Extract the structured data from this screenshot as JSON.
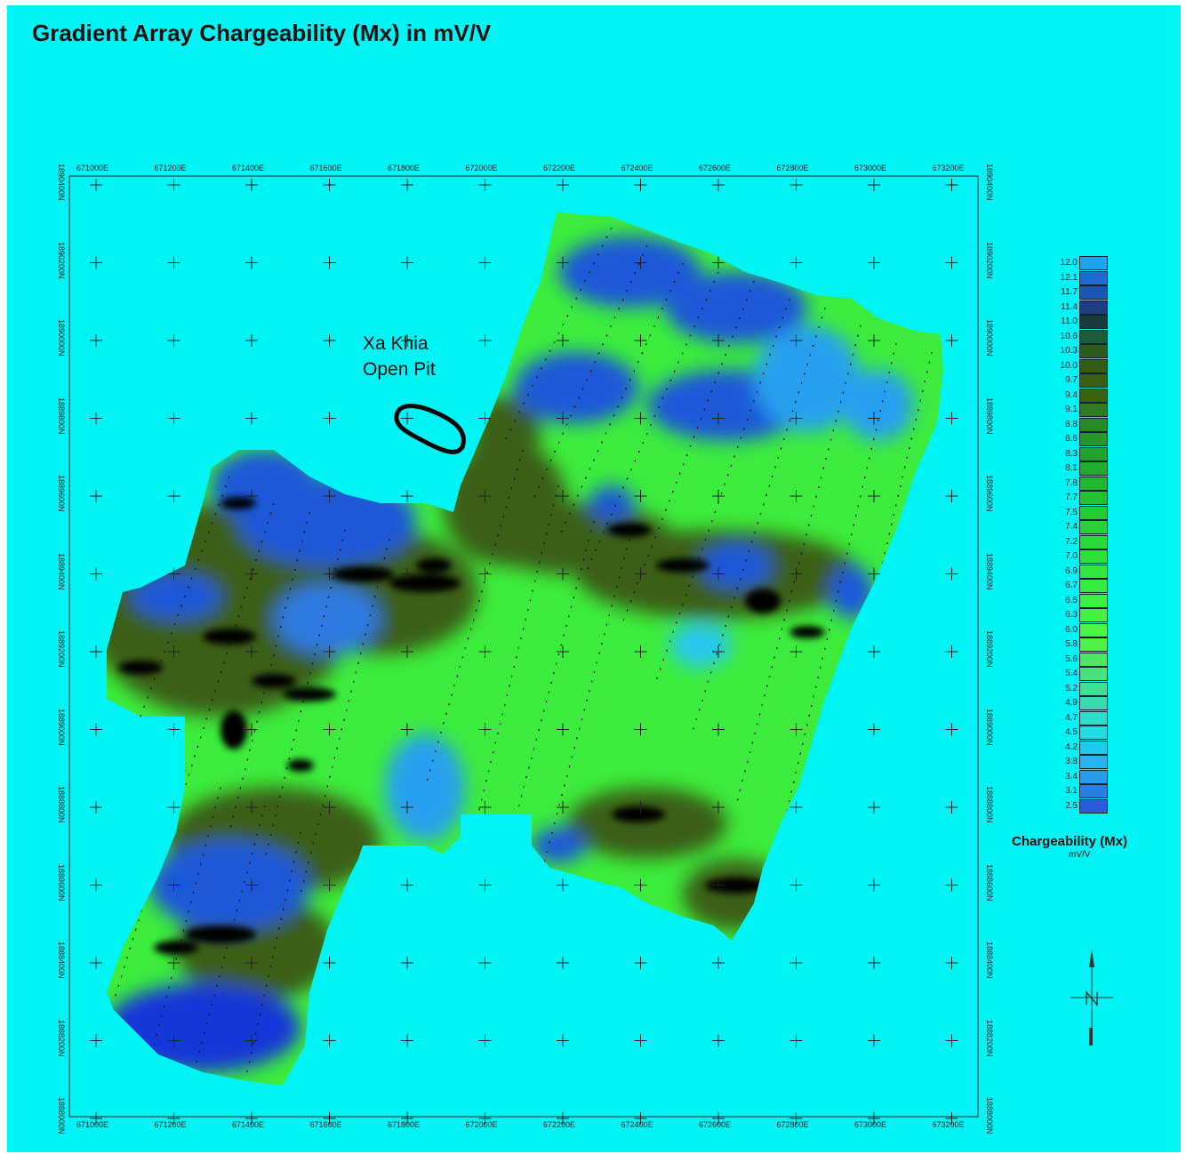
{
  "title": "Gradient Array Chargeability (Mx) in mV/V",
  "colors": {
    "background": "#00f4f6",
    "dark_green": "#3c5f10",
    "bright_green": "#3cf03c",
    "blue": "#1a4fd8",
    "black": "#050505"
  },
  "map": {
    "easting_labels": [
      "671000E",
      "671200E",
      "671400E",
      "671600E",
      "671800E",
      "672000E",
      "672200E",
      "672400E",
      "672600E",
      "672800E",
      "673000E",
      "673200E"
    ],
    "northing_labels": [
      "1890400N",
      "1890200N",
      "1890000N",
      "1889800N",
      "1889600N",
      "1889400N",
      "1889200N",
      "1889000N",
      "1888800N",
      "1888600N",
      "1888400N",
      "1888200N",
      "1888000N"
    ],
    "annotation": {
      "line1": "Xa Khia",
      "line2": "Open Pit"
    }
  },
  "legend": {
    "title": "Chargeability (Mx)",
    "unit": "mV/V",
    "items": [
      {
        "value": "12.0",
        "color": "#1ea3ee"
      },
      {
        "value": "12.1",
        "color": "#1f6bd6"
      },
      {
        "value": "11.7",
        "color": "#1a55b8"
      },
      {
        "value": "11.4",
        "color": "#1d3f7e"
      },
      {
        "value": "11.0",
        "color": "#1c3c3c"
      },
      {
        "value": "10.6",
        "color": "#1b5a3a"
      },
      {
        "value": "10.3",
        "color": "#2d5b1c"
      },
      {
        "value": "10.0",
        "color": "#345d13"
      },
      {
        "value": "9.7",
        "color": "#3a5e12"
      },
      {
        "value": "9.4",
        "color": "#3a6212"
      },
      {
        "value": "9.1",
        "color": "#2f7b22"
      },
      {
        "value": "8.8",
        "color": "#2a8a28"
      },
      {
        "value": "8.6",
        "color": "#27962a"
      },
      {
        "value": "8.3",
        "color": "#22a12c"
      },
      {
        "value": "8.1",
        "color": "#20ad2e"
      },
      {
        "value": "7.8",
        "color": "#1fb830"
      },
      {
        "value": "7.7",
        "color": "#21c232"
      },
      {
        "value": "7.5",
        "color": "#24cc34"
      },
      {
        "value": "7.4",
        "color": "#27d436"
      },
      {
        "value": "7.2",
        "color": "#2adc38"
      },
      {
        "value": "7.0",
        "color": "#2de23a"
      },
      {
        "value": "6.9",
        "color": "#31e83c"
      },
      {
        "value": "6.7",
        "color": "#36ec3e"
      },
      {
        "value": "6.5",
        "color": "#3cf040"
      },
      {
        "value": "6.3",
        "color": "#44f242"
      },
      {
        "value": "6.0",
        "color": "#4cf444"
      },
      {
        "value": "5.8",
        "color": "#50f048"
      },
      {
        "value": "5.6",
        "color": "#4ee860"
      },
      {
        "value": "5.4",
        "color": "#48e27a"
      },
      {
        "value": "5.2",
        "color": "#3fe094"
      },
      {
        "value": "4.9",
        "color": "#36dcae"
      },
      {
        "value": "4.7",
        "color": "#2ee0c8"
      },
      {
        "value": "4.5",
        "color": "#25dce4"
      },
      {
        "value": "4.2",
        "color": "#1ecbee"
      },
      {
        "value": "3.8",
        "color": "#22b4ee"
      },
      {
        "value": "3.4",
        "color": "#279aea"
      },
      {
        "value": "3.1",
        "color": "#2a7fe4"
      },
      {
        "value": "2.5",
        "color": "#2a5cde"
      }
    ]
  }
}
